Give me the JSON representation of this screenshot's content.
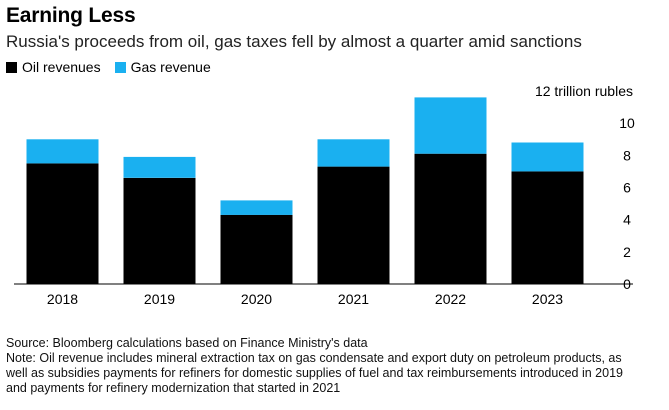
{
  "header": {
    "title": "Earning Less",
    "subtitle": "Russia's proceeds from oil, gas taxes fell by almost a quarter amid sanctions"
  },
  "legend": {
    "items": [
      {
        "label": "Oil revenues",
        "color": "#000000"
      },
      {
        "label": "Gas revenue",
        "color": "#1ab0f0"
      }
    ]
  },
  "chart_data": {
    "type": "bar",
    "stacked": true,
    "categories": [
      "2018",
      "2019",
      "2020",
      "2021",
      "2022",
      "2023"
    ],
    "series": [
      {
        "name": "Oil revenues",
        "color": "#000000",
        "values": [
          7.5,
          6.6,
          4.3,
          7.3,
          8.1,
          7.0
        ]
      },
      {
        "name": "Gas revenue",
        "color": "#1ab0f0",
        "values": [
          1.5,
          1.3,
          0.9,
          1.7,
          3.5,
          1.8
        ]
      }
    ],
    "ylim": [
      0,
      12
    ],
    "y_ticks": [
      0,
      2,
      4,
      6,
      8,
      10
    ],
    "y_unit_label": "12 trillion rubles",
    "y_axis_position": "right",
    "grid": false
  },
  "footer": {
    "source": "Source: Bloomberg calculations based on Finance Ministry's data",
    "note": "Note: Oil revenue includes mineral extraction tax on gas condensate and export duty on petroleum products, as well as subsidies payments for refiners for domestic supplies of fuel and tax reimbursements introduced in 2019 and payments for refinery modernization that started in 2021"
  }
}
